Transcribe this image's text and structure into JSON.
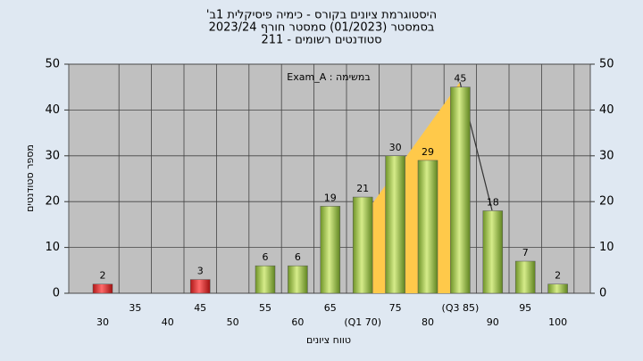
{
  "chart_data": {
    "type": "bar",
    "title": [
      "היסטוגרמת ציונים בקורס - כימיה פיסיקלית 1ב'",
      "בסמסטר  (01/2023)  סמסטר חורף 2023/24",
      "סטודנטים רשומים - 211"
    ],
    "annotation": "במשימה : Exam_A",
    "x_label": "טווח ציונים",
    "y_label": "מספר סטודנטים",
    "categories": [
      "30",
      "35",
      "40",
      "45",
      "50",
      "55",
      "60",
      "65",
      "(Q1 70)",
      "75",
      "80",
      "(Q3 85)",
      "90",
      "95",
      "100"
    ],
    "values": [
      2,
      null,
      null,
      3,
      null,
      6,
      6,
      19,
      21,
      30,
      29,
      45,
      18,
      7,
      2
    ],
    "colors": [
      "red",
      null,
      null,
      "red",
      null,
      "green",
      "green",
      "green",
      "green",
      "green",
      "green",
      "green",
      "green",
      "green",
      "green"
    ],
    "ylim": [
      0,
      50
    ],
    "yticks": [
      0,
      10,
      20,
      30,
      40,
      50
    ],
    "y2lim": [
      0,
      50
    ],
    "y2ticks": [
      0,
      10,
      20,
      30,
      40,
      50
    ],
    "grid": true
  }
}
